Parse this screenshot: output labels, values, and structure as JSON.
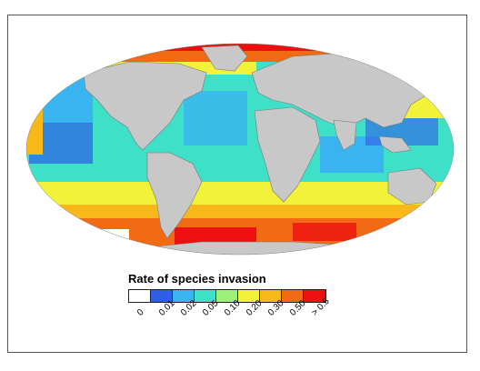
{
  "legend": {
    "title": "Rate of species invasion",
    "bins": [
      {
        "label": "0",
        "color": "#ffffff"
      },
      {
        "label": "0.01",
        "color": "#2e5de6"
      },
      {
        "label": "0.02",
        "color": "#3ab4f0"
      },
      {
        "label": "0.05",
        "color": "#3ee0c8"
      },
      {
        "label": "0.10",
        "color": "#9ef07a"
      },
      {
        "label": "0.20",
        "color": "#f2f23a"
      },
      {
        "label": "0.30",
        "color": "#f8b81a"
      },
      {
        "label": "0.50",
        "color": "#f26a14"
      },
      {
        "label": "> 0.5",
        "color": "#ee1010"
      }
    ]
  },
  "colors": {
    "land": "#c8c8c8",
    "land_border": "#7a7a7a",
    "ocean_base": "#3ee0c8",
    "frame": "#555555"
  }
}
